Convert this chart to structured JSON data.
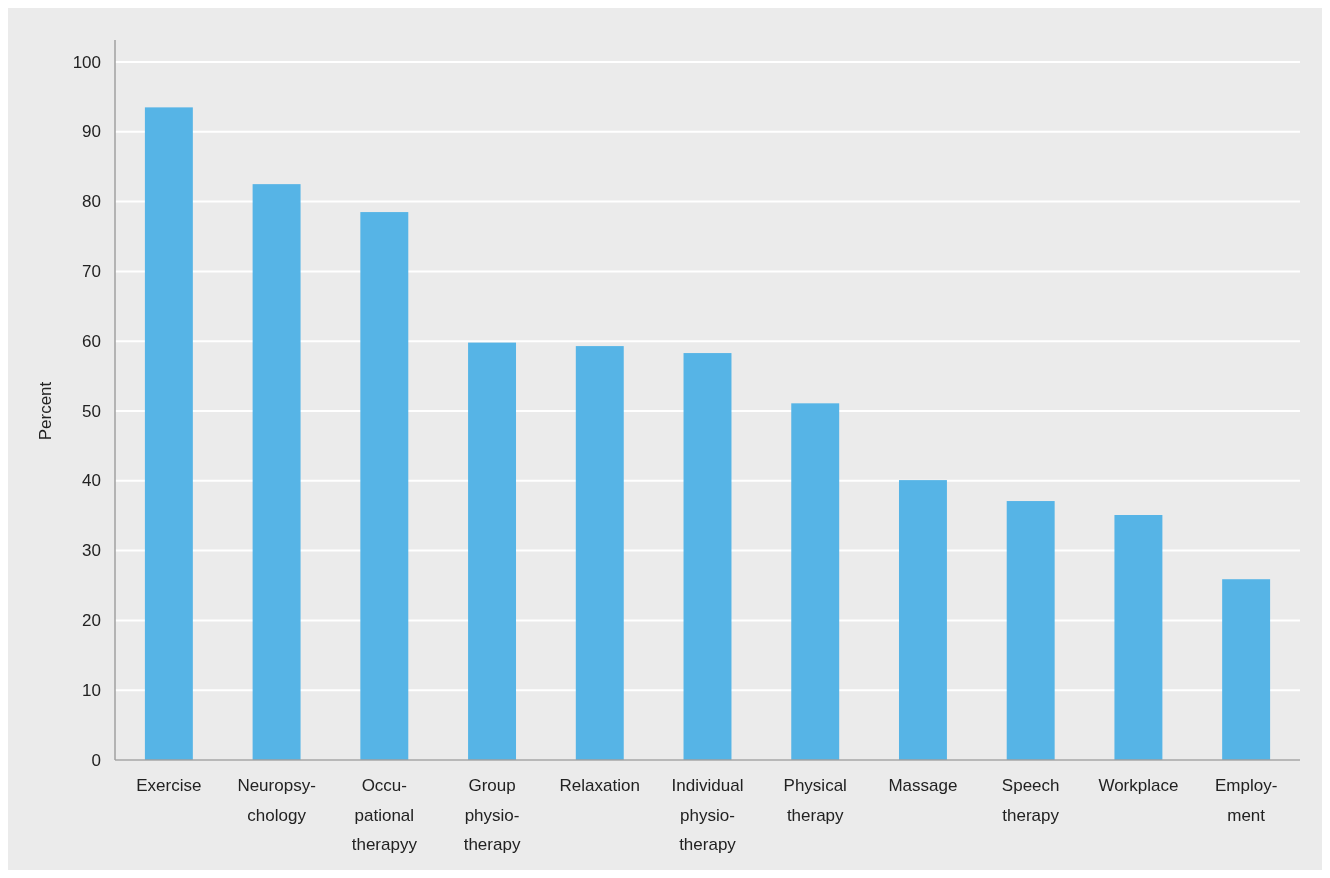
{
  "chart_data": {
    "type": "bar",
    "ylabel": "Percent",
    "categories": [
      "Exercise",
      "Neuropsy-\nchology",
      "Occu-\npational\ntherapyy",
      "Group\nphysio-\ntherapy",
      "Relaxation",
      "Individual\nphysio-\ntherapy",
      "Physical\ntherapy",
      "Massage",
      "Speech\ntherapy",
      "Workplace",
      "Employ-\nment"
    ],
    "values": [
      93.5,
      82.5,
      78.5,
      59.8,
      59.3,
      58.3,
      51.1,
      40.1,
      37.1,
      35.1,
      25.9
    ],
    "color": "#56b4e6",
    "ylim": [
      0,
      100
    ],
    "yticks": [
      0,
      10,
      20,
      30,
      40,
      50,
      60,
      70,
      80,
      90,
      100
    ],
    "grid": "y"
  }
}
